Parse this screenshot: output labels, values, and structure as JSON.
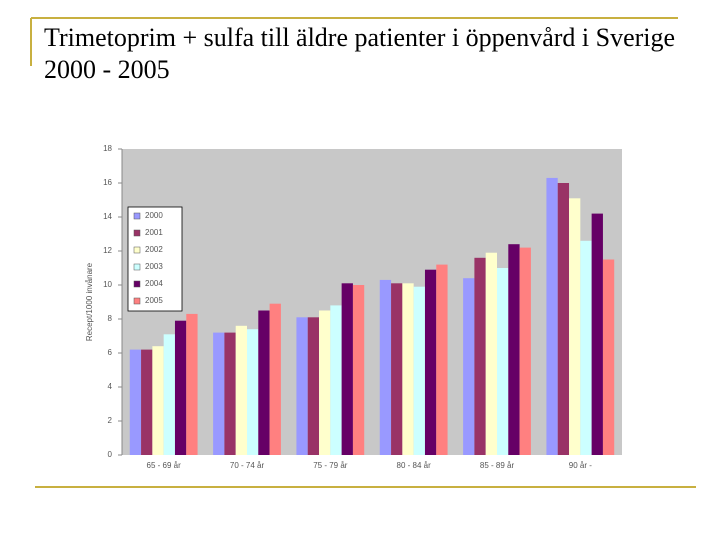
{
  "chart_data": {
    "type": "bar",
    "title": "Trimetoprim + sulfa till äldre patienter i öppenvård i Sverige 2000 - 2005",
    "y_label": "Recept/1000 invånare",
    "categories": [
      "65 - 69 år",
      "70 - 74 år",
      "75 - 79 år",
      "80 - 84 år",
      "85 - 89 år",
      "90 år -"
    ],
    "series": [
      {
        "name": "2000",
        "color": "#9999ff",
        "values": [
          6.2,
          7.2,
          8.1,
          10.3,
          10.4,
          16.3
        ]
      },
      {
        "name": "2001",
        "color": "#993366",
        "values": [
          6.2,
          7.2,
          8.1,
          10.1,
          11.6,
          16.0
        ]
      },
      {
        "name": "2002",
        "color": "#ffffcc",
        "values": [
          6.4,
          7.6,
          8.5,
          10.1,
          11.9,
          15.1
        ]
      },
      {
        "name": "2003",
        "color": "#ccffff",
        "values": [
          7.1,
          7.4,
          8.8,
          9.9,
          11.0,
          12.6
        ]
      },
      {
        "name": "2004",
        "color": "#660066",
        "values": [
          7.9,
          8.5,
          10.1,
          10.9,
          12.4,
          14.2
        ]
      },
      {
        "name": "2005",
        "color": "#ff8080",
        "values": [
          8.3,
          8.9,
          10.0,
          11.2,
          12.2,
          11.5
        ]
      }
    ],
    "ylim": [
      0,
      18
    ],
    "yticks": [
      0,
      2,
      4,
      6,
      8,
      10,
      12,
      14,
      16,
      18
    ],
    "legend": "left"
  }
}
